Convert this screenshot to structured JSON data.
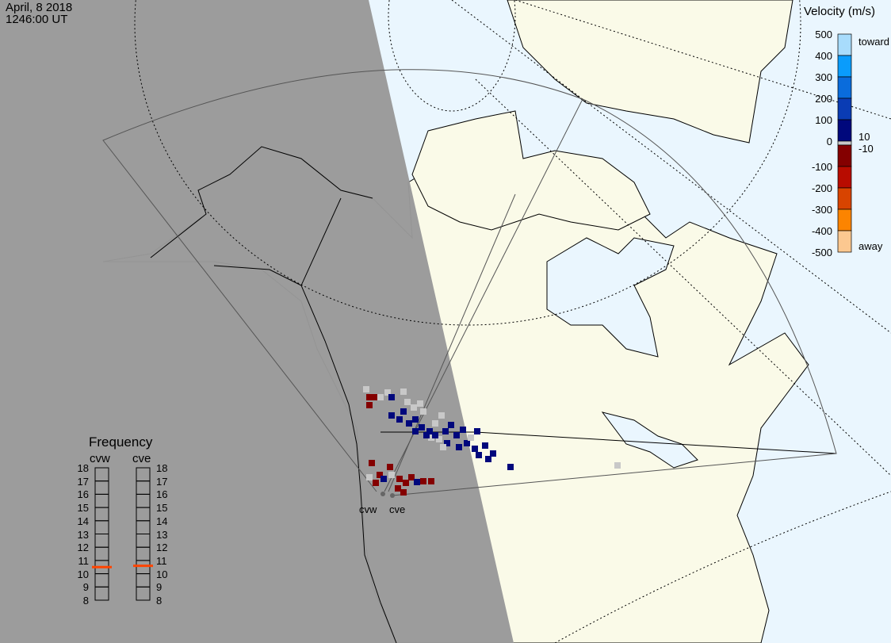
{
  "header": {
    "date": "April, 8 2018",
    "time": "1246:00 UT"
  },
  "colors": {
    "ocean": "#eaf6fe",
    "land": "#fafae8",
    "night": "#999999",
    "ground_scatter": "#c8c8c8",
    "frequency_marker": "#ff4400"
  },
  "velocity_scale": {
    "title": "Velocity (m/s)",
    "ticks": [
      "500",
      "400",
      "300",
      "200",
      "100",
      "0",
      "-100",
      "-200",
      "-300",
      "-400",
      "-500"
    ],
    "toward_label": "toward",
    "away_label": "away",
    "threshold_pos": "10",
    "threshold_neg": "-10",
    "colors": [
      "#a8dcfc",
      "#0a9cfc",
      "#0a6cdc",
      "#0a3cb4",
      "#00087c",
      "#c8c8c8",
      "#840000",
      "#b80c00",
      "#d84400",
      "#fc8400",
      "#fcc890"
    ]
  },
  "frequency": {
    "title": "Frequency",
    "ticks": [
      "18",
      "17",
      "16",
      "15",
      "14",
      "13",
      "12",
      "11",
      "10",
      "9",
      "8"
    ],
    "radars": [
      {
        "name": "cvw",
        "value_mhz": 10.5
      },
      {
        "name": "cve",
        "value_mhz": 10.6
      }
    ]
  },
  "radar_labels": {
    "cvw": "cvw",
    "cve": "cve"
  }
}
